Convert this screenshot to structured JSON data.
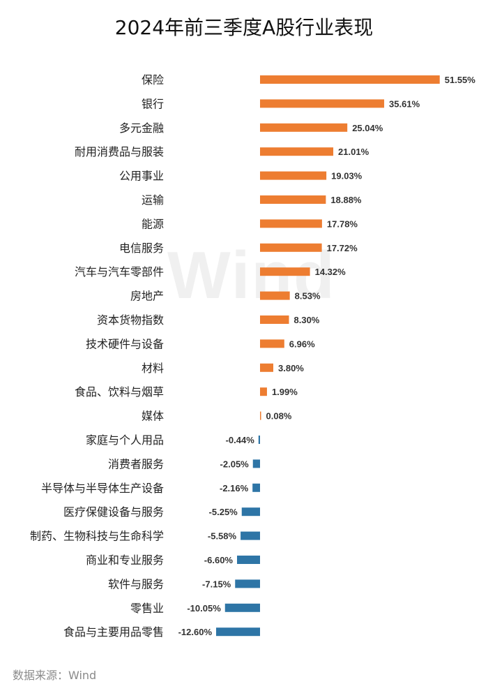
{
  "chart_data": {
    "type": "bar",
    "orientation": "horizontal",
    "title": "2024年前三季度A股行业表现",
    "source": "数据来源：Wind",
    "watermark": "Wind",
    "positive_color": "#ED7D31",
    "negative_color": "#2E75A6",
    "categories": [
      "保险",
      "银行",
      "多元金融",
      "耐用消费品与服装",
      "公用事业",
      "运输",
      "能源",
      "电信服务",
      "汽车与汽车零部件",
      "房地产",
      "资本货物指数",
      "技术硬件与设备",
      "材料",
      "食品、饮料与烟草",
      "媒体",
      "家庭与个人用品",
      "消费者服务",
      "半导体与半导体生产设备",
      "医疗保健设备与服务",
      "制药、生物科技与生命科学",
      "商业和专业服务",
      "软件与服务",
      "零售业",
      "食品与主要用品零售"
    ],
    "values": [
      51.55,
      35.61,
      25.04,
      21.01,
      19.03,
      18.88,
      17.78,
      17.72,
      14.32,
      8.53,
      8.3,
      6.96,
      3.8,
      1.99,
      0.08,
      -0.44,
      -2.05,
      -2.16,
      -5.25,
      -5.58,
      -6.6,
      -7.15,
      -10.05,
      -12.6
    ],
    "value_labels": [
      "51.55%",
      "35.61%",
      "25.04%",
      "21.01%",
      "19.03%",
      "18.88%",
      "17.78%",
      "17.72%",
      "14.32%",
      "8.53%",
      "8.30%",
      "6.96%",
      "3.80%",
      "1.99%",
      "0.08%",
      "-0.44%",
      "-2.05%",
      "-2.16%",
      "-5.25%",
      "-5.58%",
      "-6.60%",
      "-7.15%",
      "-10.05%",
      "-12.60%"
    ],
    "unit": "%",
    "xlabel": "",
    "ylabel": "",
    "grid": false
  }
}
